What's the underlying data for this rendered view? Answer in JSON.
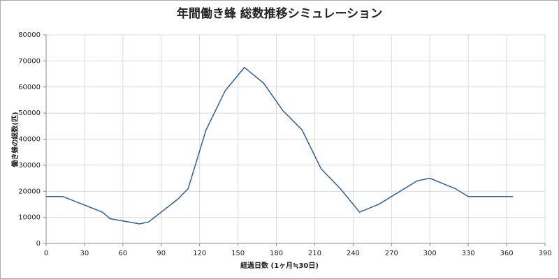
{
  "chart_data": {
    "type": "line",
    "title": "年間働き蜂 総数推移シミュレーション",
    "x_label": "経過日数 (1ヶ月≒30日)",
    "y_label": "働き蜂の総数(匹)",
    "x": [
      0,
      13,
      44,
      50,
      73,
      80,
      103,
      111,
      125,
      140,
      155,
      170,
      185,
      200,
      215,
      230,
      245,
      260,
      290,
      300,
      320,
      330,
      365
    ],
    "series": [
      {
        "name": "働き蜂",
        "color": "#2f5f98",
        "values": [
          18000,
          18000,
          12000,
          9500,
          7500,
          8200,
          17000,
          21000,
          43500,
          58600,
          67500,
          61500,
          51000,
          43600,
          28600,
          21000,
          12000,
          15000,
          24000,
          25000,
          21000,
          18000,
          18000
        ]
      }
    ],
    "xlim": [
      0,
      390
    ],
    "xticks": [
      0,
      30,
      60,
      90,
      120,
      150,
      180,
      210,
      240,
      270,
      300,
      330,
      360,
      390
    ],
    "ylim": [
      0,
      80000
    ],
    "yticks": [
      0,
      10000,
      20000,
      30000,
      40000,
      50000,
      60000,
      70000,
      80000
    ],
    "grid": true
  }
}
